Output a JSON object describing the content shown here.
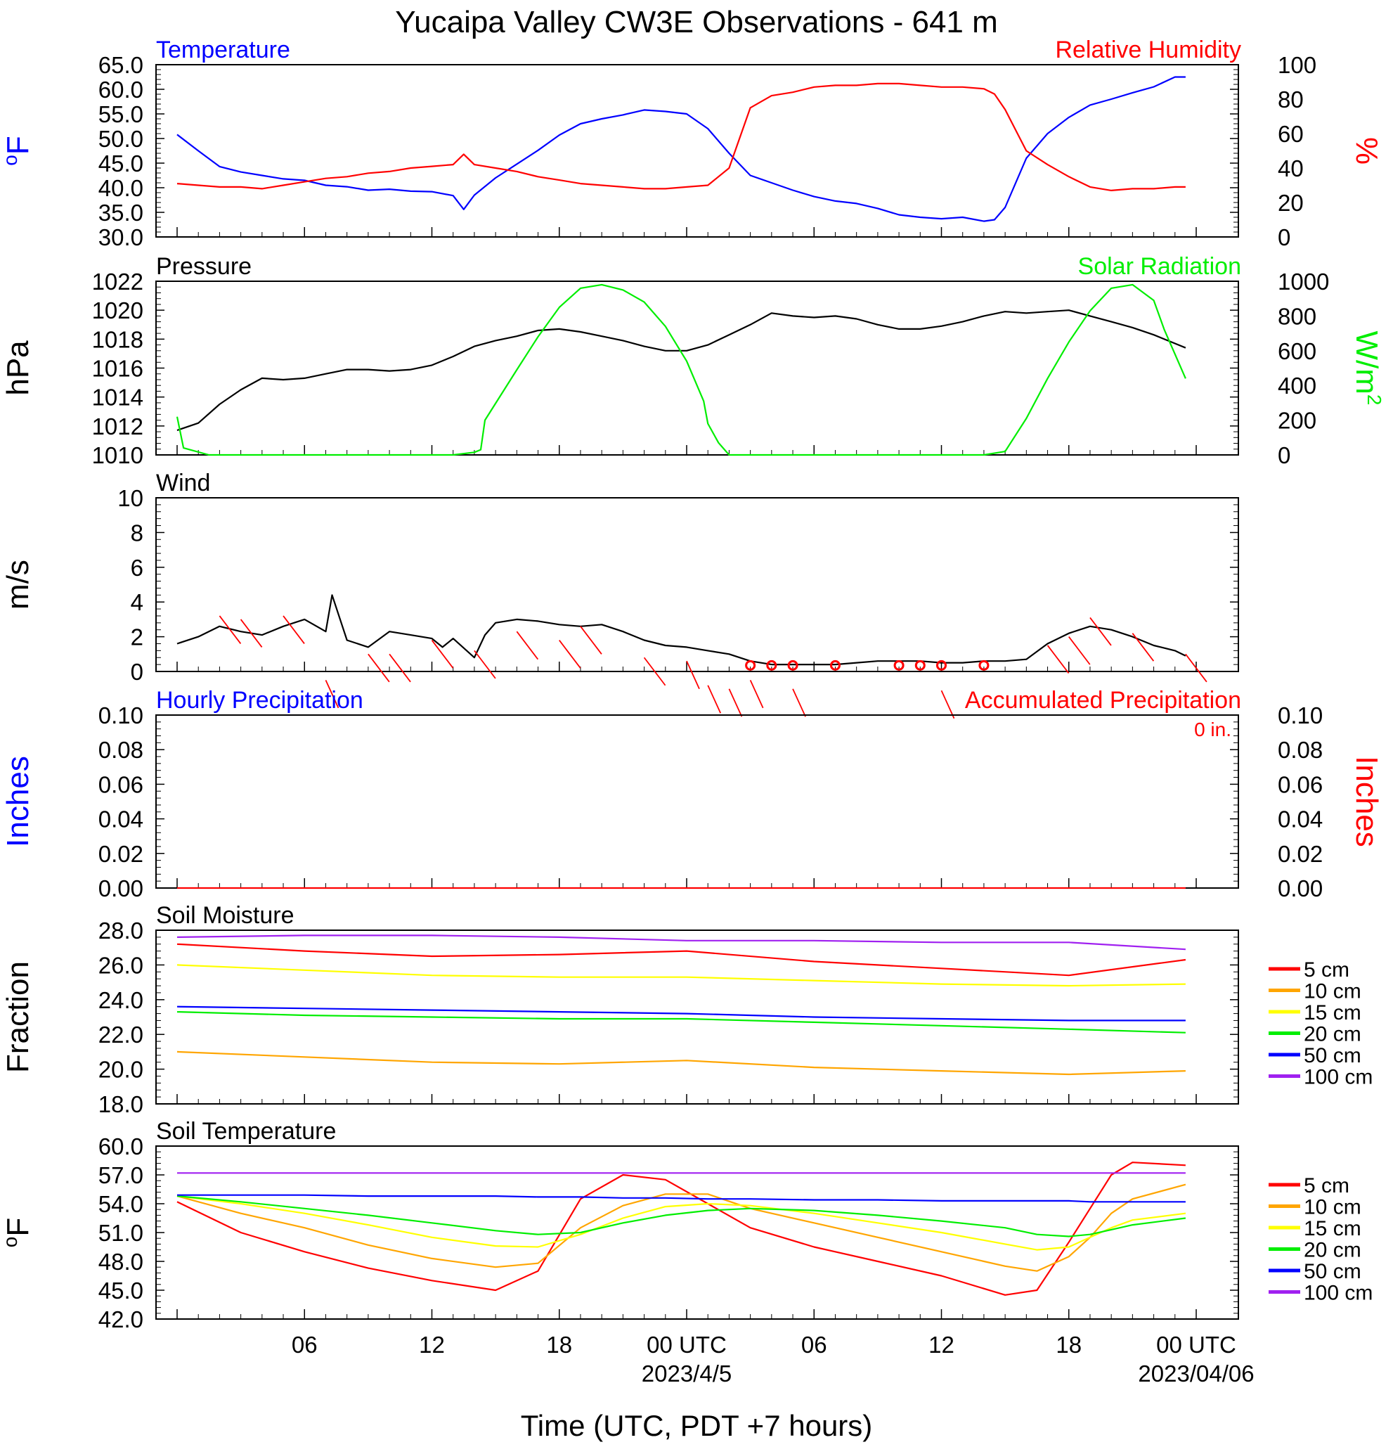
{
  "page_title": "Yucaipa Valley CW3E Observations - 641 m",
  "x_axis": {
    "label": "Time (UTC, PDT +7 hours)",
    "ticks": [
      {
        "hour": 6,
        "label": "06"
      },
      {
        "hour": 12,
        "label": "12"
      },
      {
        "hour": 18,
        "label": "18"
      },
      {
        "hour": 24,
        "label": "00 UTC"
      },
      {
        "hour": 30,
        "label": "06"
      },
      {
        "hour": 36,
        "label": "12"
      },
      {
        "hour": 42,
        "label": "18"
      },
      {
        "hour": 48,
        "label": "00 UTC"
      }
    ],
    "date_labels": [
      {
        "hour": 24,
        "label": "2023/4/5"
      },
      {
        "hour": 48,
        "label": "2023/04/06"
      }
    ],
    "range_hours": [
      0,
      48
    ]
  },
  "colors": {
    "blue": "#0000ff",
    "red": "#ff0000",
    "green": "#00ee00",
    "black": "#000000",
    "orange": "#ffa500",
    "yellow": "#ffff00",
    "purple": "#a020f0"
  },
  "chart_data": [
    {
      "id": "temp_rh",
      "type": "line",
      "title_left": "Temperature",
      "title_right": "Relative Humidity",
      "left_axis": {
        "unit": "oF",
        "range": [
          30,
          65
        ],
        "ticks": [
          "30.0",
          "35.0",
          "40.0",
          "45.0",
          "50.0",
          "55.0",
          "60.0",
          "65.0"
        ],
        "color": "#0000ff"
      },
      "right_axis": {
        "unit": "%",
        "range": [
          0,
          100
        ],
        "ticks": [
          "0",
          "20",
          "40",
          "60",
          "80",
          "100"
        ],
        "color": "#ff0000"
      },
      "x": [
        0,
        1,
        2,
        3,
        4,
        5,
        6,
        7,
        8,
        9,
        10,
        11,
        12,
        13,
        13.5,
        14,
        15,
        16,
        17,
        18,
        19,
        20,
        21,
        22,
        23,
        24,
        25,
        26,
        27,
        28,
        29,
        30,
        31,
        32,
        33,
        34,
        35,
        36,
        37,
        38,
        38.5,
        39,
        40,
        41,
        42,
        43,
        44,
        45,
        46,
        47,
        47.5
      ],
      "series": [
        {
          "name": "Temperature",
          "axis": "left",
          "color": "#0000ff",
          "values": [
            50.8,
            47.5,
            44.3,
            43.2,
            42.5,
            41.8,
            41.5,
            40.5,
            40.2,
            39.5,
            39.7,
            39.3,
            39.2,
            38.4,
            35.6,
            38.5,
            42.0,
            44.8,
            47.6,
            50.7,
            53.0,
            54.0,
            54.8,
            55.8,
            55.5,
            55.0,
            52.0,
            47.0,
            42.5,
            41.0,
            39.5,
            38.2,
            37.3,
            36.8,
            35.8,
            34.5,
            34.0,
            33.7,
            34.0,
            33.2,
            33.5,
            36.0,
            46.0,
            51.0,
            54.3,
            56.8,
            58.0,
            59.3,
            60.5,
            62.5,
            62.5
          ]
        },
        {
          "name": "Relative Humidity",
          "axis": "right",
          "color": "#ff0000",
          "values": [
            31,
            30,
            29,
            29,
            28,
            30,
            32,
            34,
            35,
            37,
            38,
            40,
            41,
            42,
            48,
            42,
            40,
            38,
            35,
            33,
            31,
            30,
            29,
            28,
            28,
            29,
            30,
            40,
            75,
            82,
            84,
            87,
            88,
            88,
            89,
            89,
            88,
            87,
            87,
            86,
            83,
            74,
            50,
            42,
            35,
            29,
            27,
            28,
            28,
            29,
            29
          ]
        }
      ]
    },
    {
      "id": "pressure_solar",
      "type": "line",
      "title_left": "Pressure",
      "title_right": "Solar Radiation",
      "left_axis": {
        "unit": "hPa",
        "range": [
          1010,
          1022
        ],
        "ticks": [
          "1010",
          "1012",
          "1014",
          "1016",
          "1018",
          "1020",
          "1022"
        ],
        "color": "#000000"
      },
      "right_axis": {
        "unit": "W/m",
        "unit_sup": "2",
        "range": [
          0,
          1000
        ],
        "ticks": [
          "0",
          "200",
          "400",
          "600",
          "800",
          "1000"
        ],
        "color": "#00ee00"
      },
      "series": [
        {
          "name": "Pressure",
          "axis": "left",
          "color": "#000000",
          "x": [
            0,
            1,
            2,
            3,
            4,
            5,
            6,
            7,
            8,
            9,
            10,
            11,
            12,
            13,
            14,
            15,
            16,
            17,
            18,
            19,
            20,
            21,
            22,
            23,
            24,
            25,
            26,
            27,
            28,
            29,
            30,
            31,
            32,
            33,
            34,
            35,
            36,
            37,
            38,
            39,
            40,
            41,
            42,
            43,
            44,
            45,
            46,
            47,
            47.5
          ],
          "values": [
            1011.7,
            1012.2,
            1013.5,
            1014.5,
            1015.3,
            1015.2,
            1015.3,
            1015.6,
            1015.9,
            1015.9,
            1015.8,
            1015.9,
            1016.2,
            1016.8,
            1017.5,
            1017.9,
            1018.2,
            1018.6,
            1018.7,
            1018.5,
            1018.2,
            1017.9,
            1017.5,
            1017.2,
            1017.2,
            1017.6,
            1018.3,
            1019.0,
            1019.8,
            1019.6,
            1019.5,
            1019.6,
            1019.4,
            1019.0,
            1018.7,
            1018.7,
            1018.9,
            1019.2,
            1019.6,
            1019.9,
            1019.8,
            1019.9,
            1020.0,
            1019.6,
            1019.2,
            1018.8,
            1018.3,
            1017.7,
            1017.4
          ]
        },
        {
          "name": "Solar Radiation",
          "axis": "right",
          "color": "#00ee00",
          "x": [
            0,
            0.3,
            0.6,
            1.5,
            13,
            14,
            14.3,
            14.5,
            16,
            17,
            18,
            19,
            20,
            21,
            22,
            23,
            24,
            24.8,
            25,
            25.5,
            26,
            30,
            38,
            39,
            40,
            41,
            42,
            43,
            44,
            45,
            46,
            46.5,
            47,
            47.5
          ],
          "values": [
            220,
            40,
            30,
            0,
            0,
            15,
            30,
            200,
            490,
            680,
            850,
            960,
            980,
            950,
            880,
            740,
            540,
            310,
            180,
            70,
            0,
            0,
            0,
            20,
            210,
            440,
            650,
            830,
            960,
            980,
            890,
            720,
            580,
            440
          ]
        }
      ]
    },
    {
      "id": "wind",
      "type": "line",
      "title_left": "Wind",
      "left_axis": {
        "unit": "m/s",
        "range": [
          0,
          10
        ],
        "ticks": [
          "0",
          "2",
          "4",
          "6",
          "8",
          "10"
        ],
        "color": "#000000"
      },
      "series": [
        {
          "name": "Wind",
          "color": "#000000",
          "x": [
            0,
            1,
            2,
            3,
            4,
            5,
            6,
            7,
            7.3,
            8,
            9,
            10,
            11,
            12,
            12.5,
            13,
            14,
            14.5,
            15,
            16,
            17,
            18,
            19,
            20,
            21,
            22,
            23,
            24,
            25,
            26,
            27,
            28,
            29,
            30,
            31,
            32,
            33,
            34,
            35,
            36,
            37,
            38,
            39,
            40,
            41,
            42,
            43,
            44,
            45,
            46,
            47,
            47.5
          ],
          "values": [
            1.6,
            2.0,
            2.6,
            2.3,
            2.1,
            2.6,
            3.0,
            2.3,
            4.4,
            1.8,
            1.4,
            2.3,
            2.1,
            1.9,
            1.4,
            1.9,
            0.8,
            2.1,
            2.8,
            3.0,
            2.9,
            2.7,
            2.6,
            2.7,
            2.3,
            1.8,
            1.5,
            1.4,
            1.2,
            1.0,
            0.6,
            0.4,
            0.4,
            0.4,
            0.4,
            0.5,
            0.6,
            0.6,
            0.6,
            0.5,
            0.5,
            0.6,
            0.6,
            0.7,
            1.6,
            2.2,
            2.6,
            2.4,
            2.0,
            1.5,
            1.2,
            0.9
          ]
        }
      ],
      "barb_note": "red wind barbs and calm circles"
    },
    {
      "id": "precip",
      "type": "line",
      "title_left": "Hourly Precipitation",
      "title_right": "Accumulated Precipitation",
      "annotation": "0 in.",
      "left_axis": {
        "unit": "Inches",
        "range": [
          0,
          0.1
        ],
        "ticks": [
          "0.00",
          "0.02",
          "0.04",
          "0.06",
          "0.08",
          "0.10"
        ],
        "color": "#0000ff"
      },
      "right_axis": {
        "unit": "Inches",
        "range": [
          0,
          0.1
        ],
        "ticks": [
          "0.00",
          "0.02",
          "0.04",
          "0.06",
          "0.08",
          "0.10"
        ],
        "color": "#ff0000"
      },
      "series": [
        {
          "name": "Accumulated Precipitation",
          "color": "#ff0000",
          "x": [
            0,
            47.5
          ],
          "values": [
            0,
            0
          ]
        }
      ]
    },
    {
      "id": "soil_moisture",
      "type": "line",
      "title_left": "Soil Moisture",
      "left_axis": {
        "unit": "Fraction",
        "range": [
          18,
          28
        ],
        "ticks": [
          "18.0",
          "20.0",
          "22.0",
          "24.0",
          "26.0",
          "28.0"
        ],
        "color": "#000000"
      },
      "x": [
        0,
        6,
        12,
        18,
        24,
        30,
        36,
        42,
        47.5
      ],
      "series": [
        {
          "name": "5 cm",
          "color": "#ff0000",
          "values": [
            27.2,
            26.8,
            26.5,
            26.6,
            26.8,
            26.2,
            25.8,
            25.4,
            26.3
          ]
        },
        {
          "name": "10 cm",
          "color": "#ffa500",
          "values": [
            21.0,
            20.7,
            20.4,
            20.3,
            20.5,
            20.1,
            19.9,
            19.7,
            19.9
          ]
        },
        {
          "name": "15 cm",
          "color": "#ffff00",
          "values": [
            26.0,
            25.7,
            25.4,
            25.3,
            25.3,
            25.1,
            24.9,
            24.8,
            24.9
          ]
        },
        {
          "name": "20 cm",
          "color": "#00ee00",
          "values": [
            23.3,
            23.1,
            23.0,
            22.9,
            22.9,
            22.7,
            22.5,
            22.3,
            22.1
          ]
        },
        {
          "name": "50 cm",
          "color": "#0000ff",
          "values": [
            23.6,
            23.5,
            23.4,
            23.3,
            23.2,
            23.0,
            22.9,
            22.8,
            22.8
          ]
        },
        {
          "name": "100 cm",
          "color": "#a020f0",
          "values": [
            27.6,
            27.7,
            27.7,
            27.6,
            27.4,
            27.4,
            27.3,
            27.3,
            26.9
          ]
        }
      ]
    },
    {
      "id": "soil_temperature",
      "type": "line",
      "title_left": "Soil Temperature",
      "left_axis": {
        "unit": "oF",
        "range": [
          42,
          60
        ],
        "ticks": [
          "42.0",
          "45.0",
          "48.0",
          "51.0",
          "54.0",
          "57.0",
          "60.0"
        ],
        "color": "#000000"
      },
      "x": [
        0,
        3,
        6,
        9,
        12,
        15,
        17,
        19,
        21,
        23,
        25,
        27,
        30,
        33,
        36,
        39,
        40.5,
        42,
        43,
        44,
        45,
        47.5
      ],
      "series": [
        {
          "name": "5 cm",
          "color": "#ff0000",
          "values": [
            54.2,
            51.0,
            49.0,
            47.3,
            46.0,
            45.0,
            47.0,
            54.5,
            57.0,
            56.5,
            54.0,
            51.5,
            49.5,
            48.0,
            46.5,
            44.5,
            45.0,
            50.0,
            53.5,
            57.0,
            58.3,
            58.0
          ]
        },
        {
          "name": "10 cm",
          "color": "#ffa500",
          "values": [
            54.8,
            53.0,
            51.5,
            49.7,
            48.3,
            47.4,
            47.8,
            51.5,
            53.8,
            55.0,
            55.0,
            53.5,
            52.0,
            50.5,
            49.0,
            47.5,
            47.0,
            48.5,
            50.5,
            53.0,
            54.5,
            56.0
          ]
        },
        {
          "name": "15 cm",
          "color": "#ffff00",
          "values": [
            54.8,
            54.0,
            53.0,
            51.8,
            50.5,
            49.6,
            49.5,
            50.8,
            52.5,
            53.7,
            54.0,
            53.8,
            53.0,
            52.0,
            51.0,
            49.8,
            49.2,
            49.5,
            50.5,
            51.5,
            52.3,
            53.0
          ]
        },
        {
          "name": "20 cm",
          "color": "#00ee00",
          "values": [
            54.8,
            54.2,
            53.5,
            52.8,
            52.0,
            51.2,
            50.8,
            51.0,
            52.0,
            52.8,
            53.3,
            53.5,
            53.3,
            52.8,
            52.2,
            51.5,
            50.8,
            50.6,
            50.8,
            51.3,
            51.8,
            52.5
          ]
        },
        {
          "name": "50 cm",
          "color": "#0000ff",
          "values": [
            54.9,
            54.9,
            54.9,
            54.8,
            54.8,
            54.8,
            54.7,
            54.7,
            54.6,
            54.6,
            54.5,
            54.5,
            54.4,
            54.4,
            54.3,
            54.3,
            54.3,
            54.3,
            54.2,
            54.2,
            54.2,
            54.2
          ]
        },
        {
          "name": "100 cm",
          "color": "#a020f0",
          "values": [
            57.2,
            57.2,
            57.2,
            57.2,
            57.2,
            57.2,
            57.2,
            57.2,
            57.2,
            57.2,
            57.2,
            57.2,
            57.2,
            57.2,
            57.2,
            57.2,
            57.2,
            57.2,
            57.2,
            57.2,
            57.2,
            57.2
          ]
        }
      ]
    }
  ]
}
